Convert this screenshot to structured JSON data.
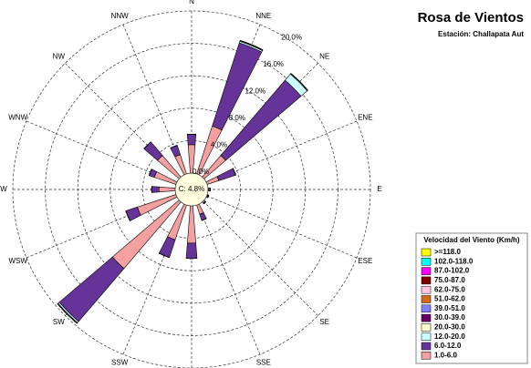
{
  "chart_data": {
    "type": "windrose",
    "title": "Rosa de Vientos",
    "subtitle": "Estación: Challapata Aut",
    "legend_title": "Velocidad del Viento (Km/h)",
    "categories": [
      "N",
      "NNE",
      "NE",
      "ENE",
      "E",
      "ESE",
      "SE",
      "SSE",
      "S",
      "SSW",
      "SW",
      "WSW",
      "W",
      "WNW",
      "NW",
      "NNW"
    ],
    "calm": {
      "value": 4.8,
      "label": "C: 4.8%"
    },
    "rlim": [
      0,
      20
    ],
    "rticks": [
      {
        "value": 0,
        "label": "0.0%"
      },
      {
        "value": 4,
        "label": "4.0%"
      },
      {
        "value": 8,
        "label": "8.0%"
      },
      {
        "value": 12,
        "label": "12.0%"
      },
      {
        "value": 16,
        "label": "16.0%"
      },
      {
        "value": 20,
        "label": "20.0%"
      }
    ],
    "series": [
      {
        "name": ">=118.0",
        "color": "#ffff00",
        "values": [
          0,
          0,
          0,
          0,
          0,
          0,
          0,
          0,
          0,
          0,
          0,
          0,
          0,
          0,
          0,
          0
        ]
      },
      {
        "name": "102.0-118.0",
        "color": "#00ffff",
        "values": [
          0,
          0,
          0,
          0,
          0,
          0,
          0,
          0,
          0,
          0,
          0,
          0,
          0,
          0,
          0,
          0
        ]
      },
      {
        "name": "87.0-102.0",
        "color": "#ff00ff",
        "values": [
          0,
          0,
          0,
          0,
          0,
          0,
          0,
          0,
          0,
          0,
          0,
          0,
          0,
          0,
          0,
          0
        ]
      },
      {
        "name": "75.0-87.0",
        "color": "#800000",
        "values": [
          0,
          0,
          0,
          0,
          0,
          0,
          0,
          0,
          0,
          0,
          0,
          0,
          0,
          0,
          0,
          0
        ]
      },
      {
        "name": "62.0-75.0",
        "color": "#ffc8e0",
        "values": [
          0,
          0,
          0,
          0,
          0,
          0,
          0,
          0,
          0,
          0,
          0,
          0,
          0,
          0,
          0,
          0
        ]
      },
      {
        "name": "51.0-62.0",
        "color": "#d2691e",
        "values": [
          0,
          0,
          0,
          0,
          0,
          0,
          0,
          0,
          0,
          0,
          0,
          0,
          0,
          0,
          0,
          0
        ]
      },
      {
        "name": "39.0-51.0",
        "color": "#8080ff",
        "values": [
          0,
          0,
          0,
          0,
          0,
          0,
          0,
          0,
          0,
          0,
          0,
          0,
          0,
          0,
          0,
          0
        ]
      },
      {
        "name": "30.0-39.0",
        "color": "#660066",
        "values": [
          0,
          0,
          0,
          0,
          0,
          0,
          0,
          0,
          0,
          0,
          0,
          0,
          0,
          0,
          0,
          0
        ]
      },
      {
        "name": "20.0-30.0",
        "color": "#ffffcc",
        "values": [
          0,
          0.1,
          0.1,
          0,
          0,
          0,
          0,
          0,
          0,
          0,
          0.1,
          0,
          0,
          0,
          0,
          0
        ]
      },
      {
        "name": "12.0-20.0",
        "color": "#ccffff",
        "values": [
          0,
          0.2,
          1.0,
          0,
          0,
          0,
          0,
          0,
          0,
          0,
          0.2,
          0,
          0,
          0,
          0,
          0
        ]
      },
      {
        "name": "6.0-12.0",
        "color": "#663399",
        "values": [
          1.3,
          10.8,
          12.2,
          2.2,
          0.2,
          0.1,
          0.1,
          0.8,
          1.9,
          2.3,
          8.6,
          1.5,
          0.9,
          0.7,
          2.2,
          1.2
        ]
      },
      {
        "name": "1.0-6.0",
        "color": "#f4a0a0",
        "values": [
          3.5,
          6.2,
          3.5,
          1.5,
          0.1,
          0.1,
          0.2,
          1.2,
          4.6,
          4.5,
          10.8,
          5.0,
          2.0,
          2.8,
          3.5,
          2.5
        ]
      }
    ]
  }
}
